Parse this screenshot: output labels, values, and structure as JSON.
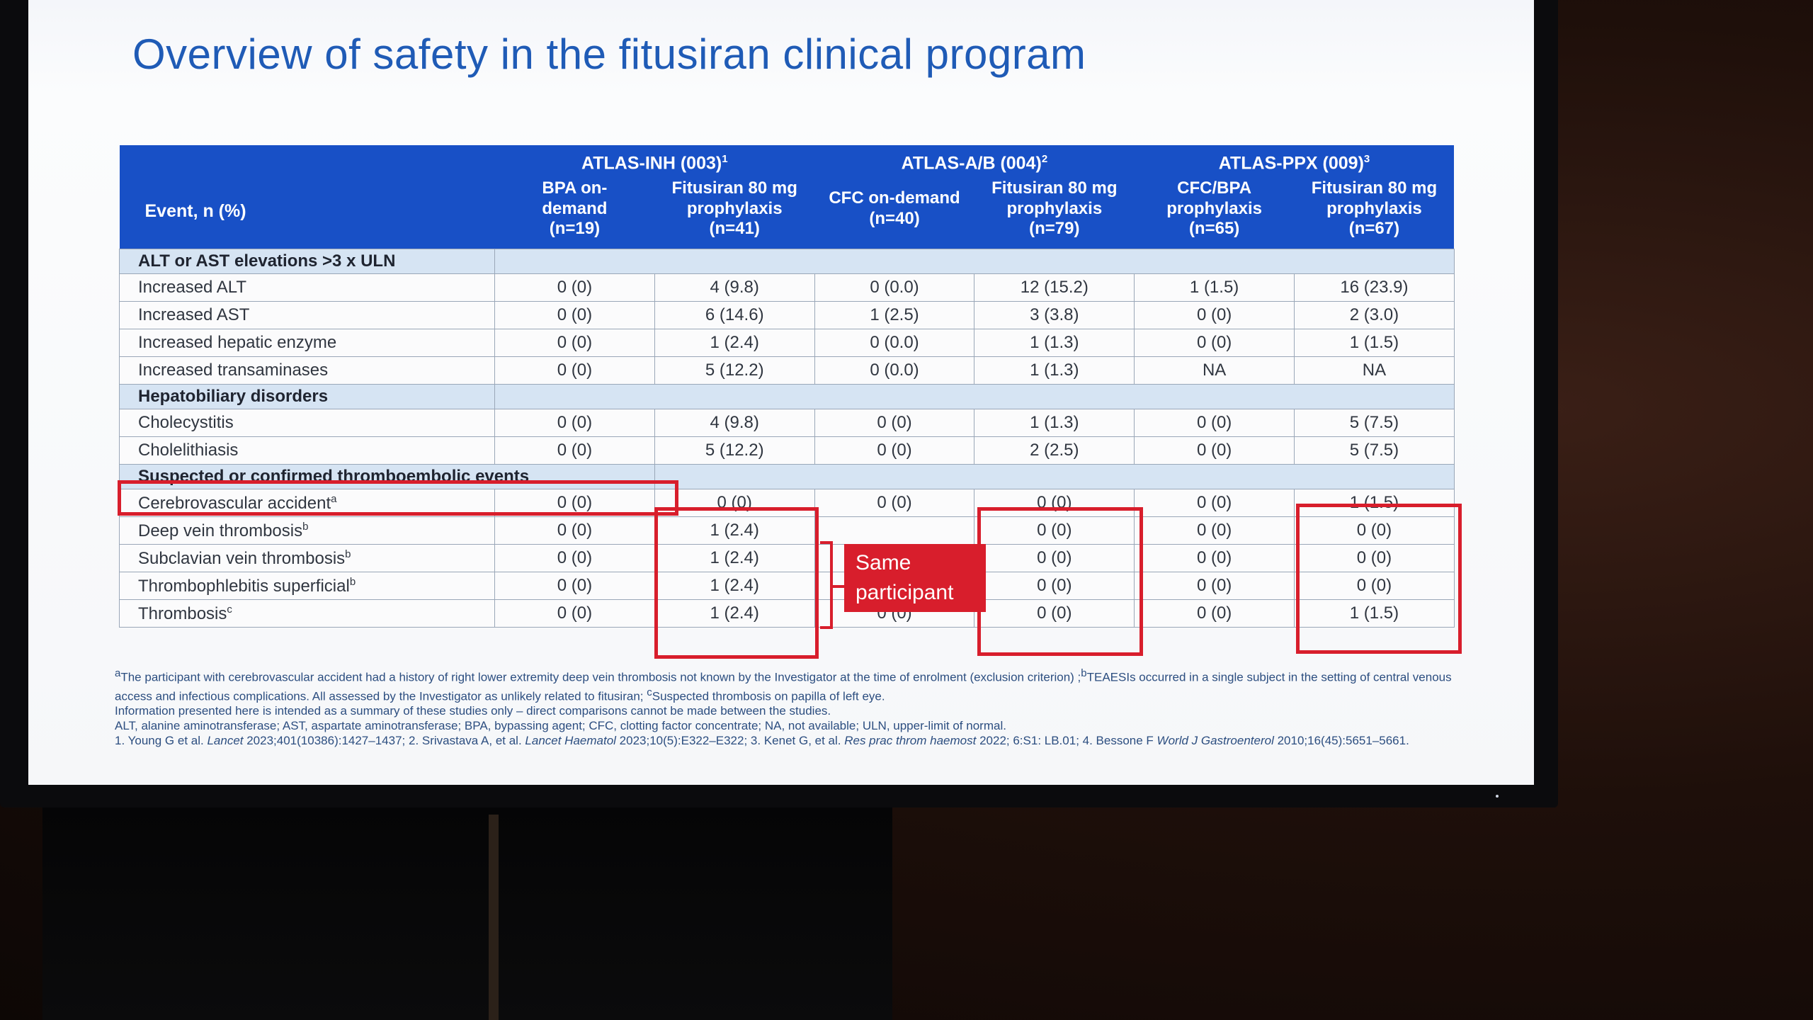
{
  "slide": {
    "title": "Overview of safety in the fitusiran clinical program"
  },
  "table": {
    "event_header": "Event, n (%)",
    "studies": [
      {
        "name": "ATLAS-INH (003)",
        "ref": "1"
      },
      {
        "name": "ATLAS-A/B (004)",
        "ref": "2"
      },
      {
        "name": "ATLAS-PPX (009)",
        "ref": "3"
      }
    ],
    "arms": [
      {
        "line1": "BPA on-",
        "line2": "demand",
        "line3": "(n=19)"
      },
      {
        "line1": "Fitusiran 80 mg",
        "line2": "prophylaxis",
        "line3": "(n=41)"
      },
      {
        "line1": "CFC on-demand",
        "line2": "(n=40)",
        "line3": ""
      },
      {
        "line1": "Fitusiran 80 mg",
        "line2": "prophylaxis",
        "line3": "(n=79)"
      },
      {
        "line1": "CFC/BPA",
        "line2": "prophylaxis",
        "line3": "(n=65)"
      },
      {
        "line1": "Fitusiran 80 mg",
        "line2": "prophylaxis",
        "line3": "(n=67)"
      }
    ],
    "sections": [
      {
        "label": "ALT or AST elevations >3 x ULN",
        "rows": [
          {
            "event": "Increased ALT",
            "sup": "",
            "values": [
              "0 (0)",
              "4 (9.8)",
              "0 (0.0)",
              "12 (15.2)",
              "1 (1.5)",
              "16 (23.9)"
            ]
          },
          {
            "event": "Increased AST",
            "sup": "",
            "values": [
              "0 (0)",
              "6 (14.6)",
              "1 (2.5)",
              "3 (3.8)",
              "0 (0)",
              "2 (3.0)"
            ]
          },
          {
            "event": "Increased hepatic enzyme",
            "sup": "",
            "values": [
              "0 (0)",
              "1 (2.4)",
              "0 (0.0)",
              "1 (1.3)",
              "0 (0)",
              "1 (1.5)"
            ]
          },
          {
            "event": "Increased transaminases",
            "sup": "",
            "values": [
              "0 (0)",
              "5 (12.2)",
              "0 (0.0)",
              "1 (1.3)",
              "NA",
              "NA"
            ]
          }
        ]
      },
      {
        "label": "Hepatobiliary disorders",
        "rows": [
          {
            "event": "Cholecystitis",
            "sup": "",
            "values": [
              "0 (0)",
              "4 (9.8)",
              "0 (0)",
              "1 (1.3)",
              "0 (0)",
              "5 (7.5)"
            ]
          },
          {
            "event": "Cholelithiasis",
            "sup": "",
            "values": [
              "0 (0)",
              "5 (12.2)",
              "0 (0)",
              "2 (2.5)",
              "0 (0)",
              "5 (7.5)"
            ]
          }
        ]
      },
      {
        "label": "Suspected or confirmed thromboembolic events",
        "rows": [
          {
            "event": "Cerebrovascular accident",
            "sup": "a",
            "values": [
              "0 (0)",
              "0 (0)",
              "0 (0)",
              "0 (0)",
              "0 (0)",
              "1 (1.5)"
            ]
          },
          {
            "event": "Deep vein thrombosis",
            "sup": "b",
            "values": [
              "0 (0)",
              "1 (2.4)",
              "",
              "0 (0)",
              "0 (0)",
              "0 (0)"
            ]
          },
          {
            "event": "Subclavian vein thrombosis",
            "sup": "b",
            "values": [
              "0 (0)",
              "1 (2.4)",
              "",
              "0 (0)",
              "0 (0)",
              "0 (0)"
            ]
          },
          {
            "event": "Thrombophlebitis superficial",
            "sup": "b",
            "values": [
              "0 (0)",
              "1 (2.4)",
              "",
              "0 (0)",
              "0 (0)",
              "0 (0)"
            ]
          },
          {
            "event": "Thrombosis",
            "sup": "c",
            "values": [
              "0 (0)",
              "1 (2.4)",
              "0 (0)",
              "0 (0)",
              "0 (0)",
              "1 (1.5)"
            ]
          }
        ]
      }
    ]
  },
  "callout": {
    "line1": "Same",
    "line2": "participant"
  },
  "footnotes": {
    "line1_sup_a": "a",
    "line1a": "The participant with cerebrovascular accident had a history of right lower extremity deep vein thrombosis not known by the Investigator at the time of enrolment (exclusion criterion) ;",
    "line1_sup_b": "b",
    "line1b": "TEAESIs occurred in a single subject in the setting of central venous access and infectious complications. All assessed by the Investigator as unlikely related to fitusiran; ",
    "line1_sup_c": "c",
    "line1c": "Suspected thrombosis on papilla of left eye.",
    "line2": "Information presented here is intended as a summary of these studies only – direct comparisons cannot be made between the studies.",
    "line3": "ALT, alanine aminotransferase; AST, aspartate aminotransferase; BPA, bypassing agent; CFC, clotting factor concentrate; NA, not available; ULN, upper-limit of normal.",
    "ref1_a": "1. Young G et al. ",
    "ref1_j": "Lancet",
    "ref1_b": " 2023;401(10386):1427–1437; 2. Srivastava A, et al. ",
    "ref2_j": "Lancet Haematol",
    "ref2_b": " 2023;10(5):E322–E322; 3. Kenet G, et al. ",
    "ref3_j": "Res prac throm haemost",
    "ref3_b": " 2022; 6:S1: LB.01; 4. Bessone F ",
    "ref4_j": "World J Gastroenterol",
    "ref4_b": " 2010;16(45):5651–5661."
  }
}
